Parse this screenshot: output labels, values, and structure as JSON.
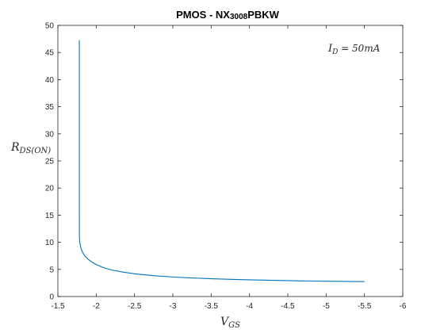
{
  "chart_data": {
    "type": "line",
    "title": {
      "prefix": "PMOS - NX",
      "sub": "3008",
      "suffix": "PBKW"
    },
    "annotation": {
      "main": "I",
      "sub": "D",
      "rest": " = 50mA"
    },
    "xlabel": {
      "main": "V",
      "sub": "GS"
    },
    "ylabel": {
      "main": "R",
      "sub": "DS(ON)"
    },
    "xlim": [
      -1.5,
      -6
    ],
    "ylim": [
      0,
      50
    ],
    "x_ticks": [
      -1.5,
      -2,
      -2.5,
      -3,
      -3.5,
      -4,
      -4.5,
      -5,
      -5.5,
      -6
    ],
    "x_tick_labels": [
      "-1.5",
      "-2",
      "-2.5",
      "-3",
      "-3.5",
      "-4",
      "-4.5",
      "-5",
      "-5.5",
      "-6"
    ],
    "y_ticks": [
      0,
      5,
      10,
      15,
      20,
      25,
      30,
      35,
      40,
      45,
      50
    ],
    "y_tick_labels": [
      "0",
      "5",
      "10",
      "15",
      "20",
      "25",
      "30",
      "35",
      "40",
      "45",
      "50"
    ],
    "grid": false,
    "series": [
      {
        "color": "#0072BD",
        "x": [
          -1.78,
          -1.78,
          -1.78,
          -1.781,
          -1.785,
          -1.8,
          -1.82,
          -1.85,
          -1.9,
          -1.95,
          -2.0,
          -2.1,
          -2.2,
          -2.35,
          -2.5,
          -2.75,
          -3.0,
          -3.25,
          -3.5,
          -3.75,
          -4.0,
          -4.25,
          -4.5,
          -4.75,
          -5.0,
          -5.25,
          -5.5
        ],
        "y": [
          47.3,
          30,
          15,
          11,
          10,
          9,
          8.2,
          7.5,
          6.8,
          6.3,
          5.9,
          5.3,
          4.9,
          4.5,
          4.2,
          3.85,
          3.6,
          3.42,
          3.28,
          3.17,
          3.08,
          3.0,
          2.93,
          2.87,
          2.82,
          2.78,
          2.75
        ]
      }
    ]
  }
}
